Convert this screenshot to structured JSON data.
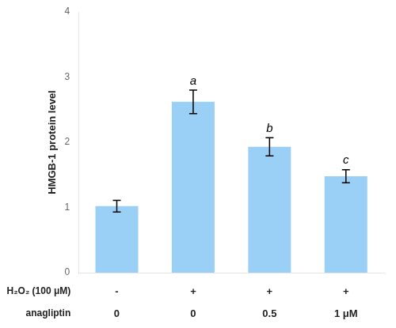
{
  "chart_data": {
    "type": "bar",
    "values": [
      1.02,
      2.62,
      1.93,
      1.48
    ],
    "errors": [
      0.09,
      0.18,
      0.14,
      0.1
    ],
    "significance_labels": [
      null,
      "a",
      "b",
      "c"
    ],
    "rows": [
      {
        "name": "H₂O₂ (100 μM)",
        "labels": [
          "-",
          "+",
          "+",
          "+"
        ]
      },
      {
        "name": "anagliptin",
        "labels": [
          "0",
          "0",
          "0.5",
          "1 μM"
        ]
      }
    ],
    "ylabel": "HMGB-1 protein level",
    "ylim": [
      0,
      4
    ],
    "yticks": [
      0,
      1,
      2,
      3,
      4
    ],
    "grid": false,
    "tick_labels": "y"
  }
}
